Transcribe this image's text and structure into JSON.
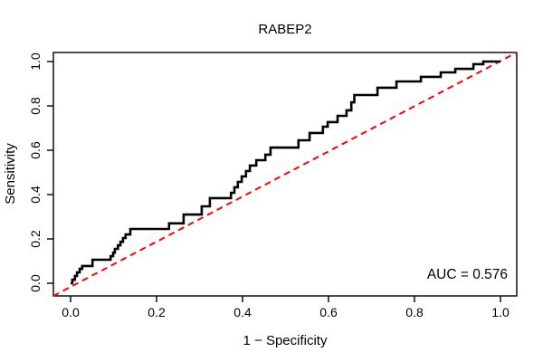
{
  "figure": {
    "background": "#ffffff"
  },
  "chart_data": {
    "type": "line",
    "subtype": "roc-curve",
    "title": "RABEP2",
    "xlabel": "1 − Specificity",
    "ylabel": "Sensitivity",
    "xlim": [
      0,
      1
    ],
    "ylim": [
      0,
      1
    ],
    "grid": false,
    "legend": "none",
    "x_tick_labels": [
      "0.0",
      "0.2",
      "0.4",
      "0.6",
      "0.8",
      "1.0"
    ],
    "y_tick_labels": [
      "0.0",
      "0.2",
      "0.4",
      "0.6",
      "0.8",
      "1.0"
    ],
    "x_tick_values": [
      0,
      0.2,
      0.4,
      0.6,
      0.8,
      1.0
    ],
    "y_tick_values": [
      0,
      0.2,
      0.4,
      0.6,
      0.8,
      1.0
    ],
    "annotation": {
      "auc_label": "AUC = 0.576",
      "auc_value": 0.576
    },
    "colors": {
      "curve": "#000000",
      "reference": "#ff0000",
      "axis": "#000000",
      "text": "#000000"
    },
    "series": [
      {
        "name": "ROC curve",
        "color": "#000000",
        "style": "solid",
        "step": true,
        "points": [
          [
            0.0,
            0.0
          ],
          [
            0.004,
            0.0
          ],
          [
            0.004,
            0.016
          ],
          [
            0.01,
            0.016
          ],
          [
            0.01,
            0.033
          ],
          [
            0.015,
            0.033
          ],
          [
            0.015,
            0.049
          ],
          [
            0.021,
            0.049
          ],
          [
            0.021,
            0.065
          ],
          [
            0.027,
            0.065
          ],
          [
            0.027,
            0.078
          ],
          [
            0.051,
            0.078
          ],
          [
            0.051,
            0.106
          ],
          [
            0.093,
            0.106
          ],
          [
            0.093,
            0.122
          ],
          [
            0.099,
            0.122
          ],
          [
            0.099,
            0.138
          ],
          [
            0.103,
            0.138
          ],
          [
            0.103,
            0.155
          ],
          [
            0.11,
            0.155
          ],
          [
            0.11,
            0.171
          ],
          [
            0.116,
            0.171
          ],
          [
            0.116,
            0.187
          ],
          [
            0.122,
            0.187
          ],
          [
            0.122,
            0.204
          ],
          [
            0.128,
            0.204
          ],
          [
            0.128,
            0.22
          ],
          [
            0.139,
            0.22
          ],
          [
            0.139,
            0.245
          ],
          [
            0.229,
            0.245
          ],
          [
            0.229,
            0.27
          ],
          [
            0.263,
            0.27
          ],
          [
            0.263,
            0.31
          ],
          [
            0.305,
            0.31
          ],
          [
            0.305,
            0.347
          ],
          [
            0.324,
            0.347
          ],
          [
            0.324,
            0.384
          ],
          [
            0.373,
            0.384
          ],
          [
            0.373,
            0.408
          ],
          [
            0.381,
            0.408
          ],
          [
            0.381,
            0.433
          ],
          [
            0.389,
            0.433
          ],
          [
            0.389,
            0.457
          ],
          [
            0.398,
            0.457
          ],
          [
            0.398,
            0.482
          ],
          [
            0.408,
            0.482
          ],
          [
            0.408,
            0.506
          ],
          [
            0.417,
            0.506
          ],
          [
            0.417,
            0.531
          ],
          [
            0.432,
            0.531
          ],
          [
            0.432,
            0.555
          ],
          [
            0.453,
            0.555
          ],
          [
            0.453,
            0.58
          ],
          [
            0.465,
            0.58
          ],
          [
            0.465,
            0.612
          ],
          [
            0.53,
            0.612
          ],
          [
            0.53,
            0.645
          ],
          [
            0.556,
            0.645
          ],
          [
            0.556,
            0.678
          ],
          [
            0.587,
            0.678
          ],
          [
            0.587,
            0.706
          ],
          [
            0.598,
            0.706
          ],
          [
            0.598,
            0.727
          ],
          [
            0.621,
            0.727
          ],
          [
            0.621,
            0.755
          ],
          [
            0.642,
            0.755
          ],
          [
            0.642,
            0.78
          ],
          [
            0.653,
            0.78
          ],
          [
            0.653,
            0.816
          ],
          [
            0.66,
            0.816
          ],
          [
            0.66,
            0.849
          ],
          [
            0.714,
            0.849
          ],
          [
            0.714,
            0.882
          ],
          [
            0.758,
            0.882
          ],
          [
            0.758,
            0.91
          ],
          [
            0.815,
            0.91
          ],
          [
            0.815,
            0.931
          ],
          [
            0.861,
            0.931
          ],
          [
            0.861,
            0.951
          ],
          [
            0.895,
            0.951
          ],
          [
            0.895,
            0.967
          ],
          [
            0.937,
            0.967
          ],
          [
            0.937,
            0.988
          ],
          [
            0.96,
            0.988
          ],
          [
            0.96,
            1.0
          ],
          [
            1.0,
            1.0
          ]
        ]
      },
      {
        "name": "reference diagonal",
        "color": "#ff0000",
        "style": "dashed",
        "step": false,
        "points": [
          [
            0,
            0
          ],
          [
            1,
            1
          ]
        ]
      }
    ]
  }
}
